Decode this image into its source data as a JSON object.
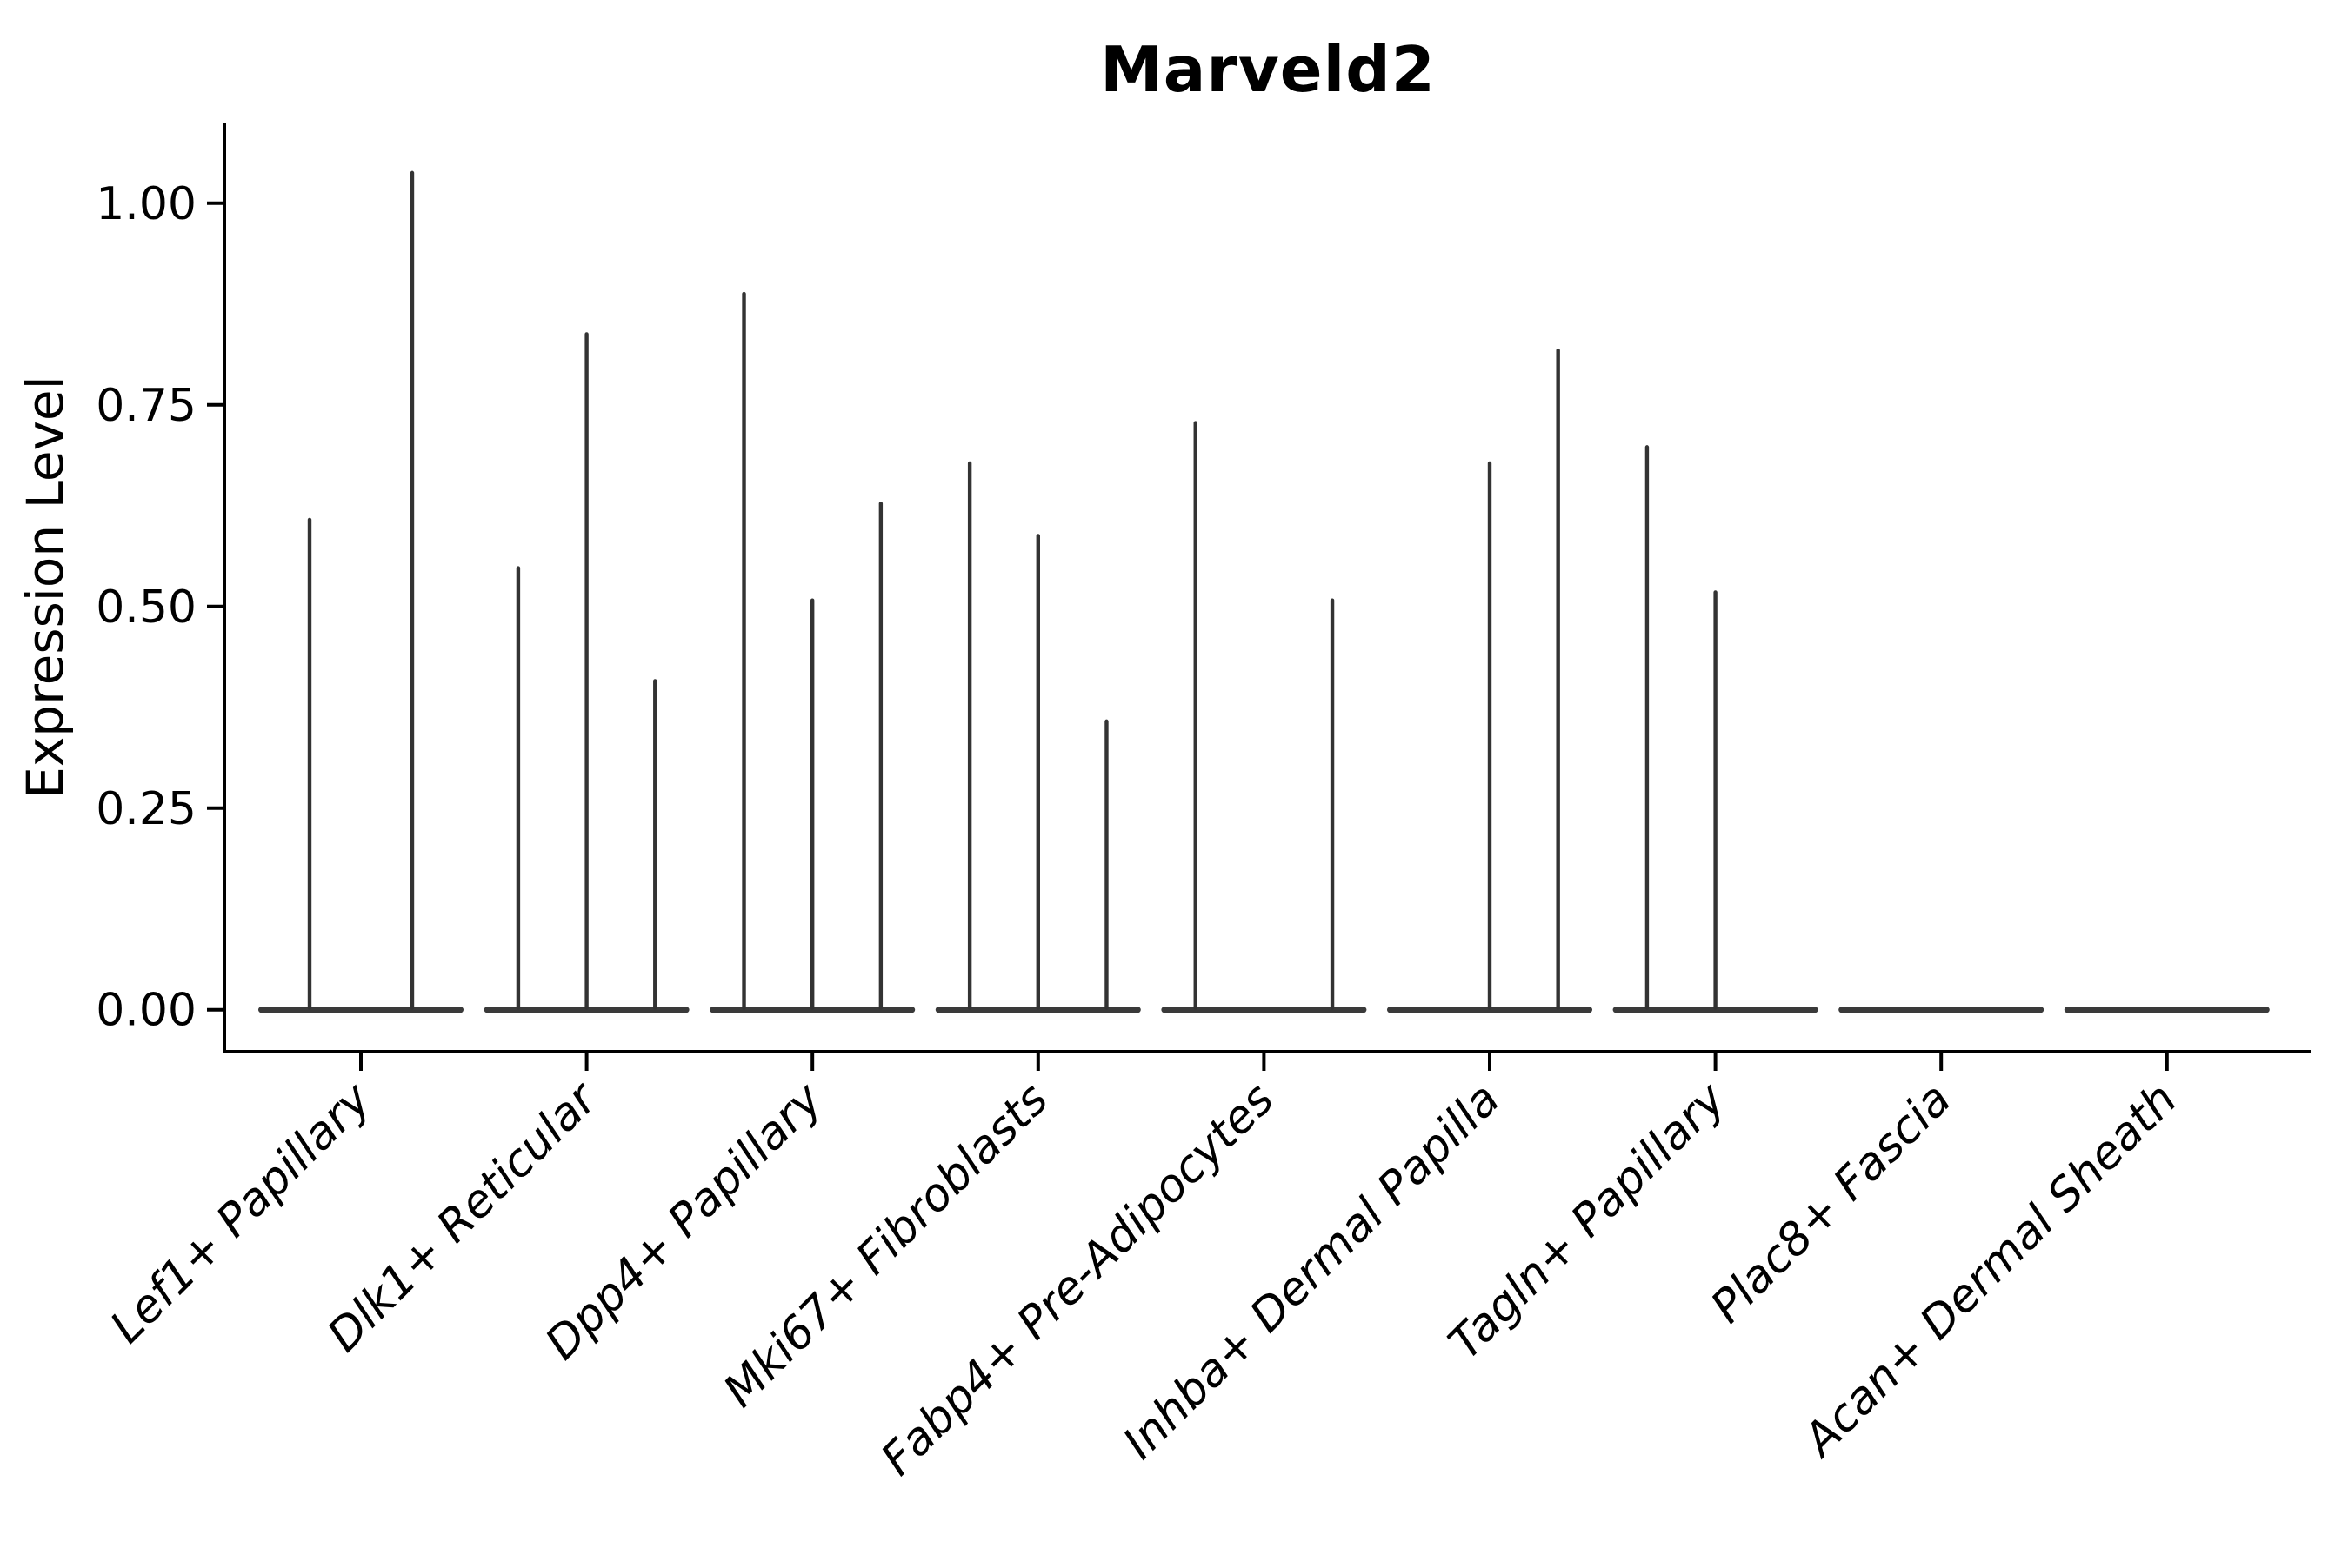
{
  "chart_data": {
    "type": "violin",
    "title": "Marveld2",
    "ylabel": "Expression Level",
    "xlabel": "",
    "ylim": [
      -0.052,
      1.1
    ],
    "ytick_values": [
      0,
      0.25,
      0.5,
      0.75,
      1.0
    ],
    "ytick_labels": [
      "0.00",
      "0.25",
      "0.50",
      "0.75",
      "1.00"
    ],
    "grid": false,
    "legend": "none",
    "x_label_angle_deg": 45,
    "colors": {
      "violin_fill": "#333333",
      "violin_base": "#3a3a3a",
      "axis": "#000000",
      "text": "#000000",
      "background": "#ffffff"
    },
    "categories": [
      {
        "label": "Lef1+ Papillary",
        "slots": 2,
        "violin_max": [
          0.61,
          1.04
        ]
      },
      {
        "label": "Dlk1+ Reticular",
        "slots": 3,
        "violin_max": [
          0.55,
          0.84,
          0.41
        ]
      },
      {
        "label": "Dpp4+ Papillary",
        "slots": 3,
        "violin_max": [
          0.89,
          0.51,
          0.63
        ]
      },
      {
        "label": "Mki67+ Fibroblasts",
        "slots": 3,
        "violin_max": [
          0.68,
          0.59,
          0.36
        ]
      },
      {
        "label": "Fabp4+ Pre-Adipocytes",
        "slots": 3,
        "violin_max": [
          0.73,
          0,
          0.51
        ]
      },
      {
        "label": "Inhba+ Dermal Papilla",
        "slots": 3,
        "violin_max": [
          0,
          0.68,
          0.82
        ]
      },
      {
        "label": "Tagln+ Papillary",
        "slots": 3,
        "violin_max": [
          0.7,
          0.52,
          0
        ]
      },
      {
        "label": "Plac8+ Fascia",
        "slots": 3,
        "violin_max": [
          0,
          0,
          0
        ]
      },
      {
        "label": "Acan+ Dermal Sheath",
        "slots": 3,
        "violin_max": [
          0,
          0,
          0
        ]
      }
    ]
  }
}
